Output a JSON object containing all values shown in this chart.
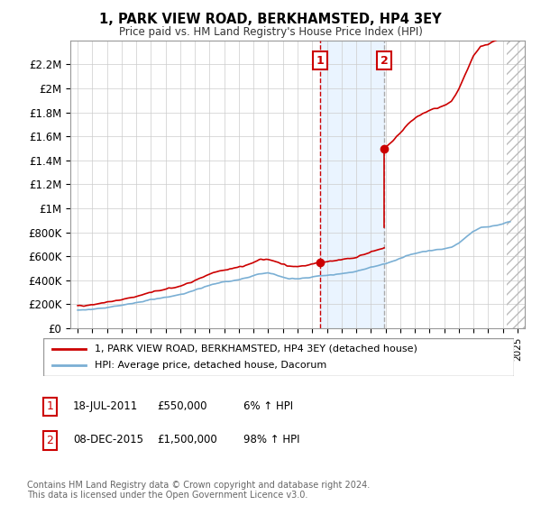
{
  "title": "1, PARK VIEW ROAD, BERKHAMSTED, HP4 3EY",
  "subtitle": "Price paid vs. HM Land Registry's House Price Index (HPI)",
  "sale1_date": "18-JUL-2011",
  "sale1_price": 550000,
  "sale1_pct": "6%",
  "sale2_date": "08-DEC-2015",
  "sale2_price": 1500000,
  "sale2_pct": "98%",
  "legend_label_red": "1, PARK VIEW ROAD, BERKHAMSTED, HP4 3EY (detached house)",
  "legend_label_blue": "HPI: Average price, detached house, Dacorum",
  "footnote": "Contains HM Land Registry data © Crown copyright and database right 2024.\nThis data is licensed under the Open Government Licence v3.0.",
  "red_color": "#cc0000",
  "blue_color": "#7aafd4",
  "ylim": [
    0,
    2400000
  ],
  "yticks": [
    0,
    200000,
    400000,
    600000,
    800000,
    1000000,
    1200000,
    1400000,
    1600000,
    1800000,
    2000000,
    2200000
  ],
  "ytick_labels": [
    "£0",
    "£200K",
    "£400K",
    "£600K",
    "£800K",
    "£1M",
    "£1.2M",
    "£1.4M",
    "£1.6M",
    "£1.8M",
    "£2M",
    "£2.2M"
  ],
  "xlim_start": 1994.5,
  "xlim_end": 2025.5,
  "sale1_x": 2011.54,
  "sale2_x": 2015.92,
  "hatch_start": 2024.3,
  "hpi_years": [
    1995,
    1995.5,
    1996,
    1996.5,
    1997,
    1997.5,
    1998,
    1998.5,
    1999,
    1999.5,
    2000,
    2000.5,
    2001,
    2001.5,
    2002,
    2002.5,
    2003,
    2003.5,
    2004,
    2004.5,
    2005,
    2005.5,
    2006,
    2006.5,
    2007,
    2007.5,
    2008,
    2008.5,
    2009,
    2009.5,
    2010,
    2010.5,
    2011,
    2011.5,
    2012,
    2012.5,
    2013,
    2013.5,
    2014,
    2014.5,
    2015,
    2015.5,
    2016,
    2016.5,
    2017,
    2017.5,
    2018,
    2018.5,
    2019,
    2019.5,
    2020,
    2020.5,
    2021,
    2021.5,
    2022,
    2022.5,
    2023,
    2023.5,
    2024,
    2024.5
  ],
  "hpi_vals": [
    148000,
    152000,
    158000,
    165000,
    173000,
    182000,
    191000,
    200000,
    212000,
    225000,
    238000,
    250000,
    258000,
    268000,
    280000,
    298000,
    318000,
    338000,
    358000,
    375000,
    388000,
    396000,
    405000,
    418000,
    438000,
    455000,
    460000,
    445000,
    425000,
    410000,
    412000,
    418000,
    428000,
    438000,
    442000,
    448000,
    455000,
    462000,
    472000,
    490000,
    508000,
    522000,
    538000,
    558000,
    582000,
    605000,
    625000,
    638000,
    648000,
    655000,
    662000,
    675000,
    710000,
    760000,
    810000,
    840000,
    845000,
    855000,
    870000,
    890000
  ]
}
